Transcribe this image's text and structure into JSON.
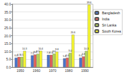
{
  "chart_data": {
    "type": "bar",
    "categories": [
      "1950",
      "1960",
      "1970",
      "1980",
      "1990"
    ],
    "series": [
      {
        "name": "Bangladesh",
        "color": "#4a74c9",
        "values": [
          6.0,
          7.5,
          7.8,
          5.6,
          6.0
        ],
        "value_labels": [
          "6.0",
          "7.5",
          "7.8",
          "5.6",
          "6.0"
        ]
      },
      {
        "name": "India",
        "color": "#e0605a",
        "values": [
          6.5,
          8.0,
          7.8,
          6.0,
          6.8
        ],
        "value_labels": [
          "6.5",
          "8.0",
          "7.8",
          "6.0",
          "6.8"
        ]
      },
      {
        "name": "Sri Lanka",
        "color": "#b5d65a",
        "values": [
          6.5,
          8.5,
          8.6,
          9.0,
          10.3
        ],
        "value_labels": [
          "6.5",
          "8.5",
          "8.6",
          "9.0",
          "10.3"
        ]
      },
      {
        "name": "South Korea",
        "color": "#f5f530",
        "values": [
          10.3,
          10.4,
          9.8,
          20.6,
          39.6
        ],
        "value_labels": [
          "10.3",
          "10.4",
          "9.8",
          "20.6",
          "39.6"
        ]
      }
    ],
    "ylim": [
      0,
      40
    ],
    "yticks": [
      {
        "value": 0,
        "label": "0.0"
      },
      {
        "value": 5,
        "label": "5.0"
      },
      {
        "value": 10,
        "label": "10.0"
      },
      {
        "value": 15,
        "label": "15.0"
      },
      {
        "value": 20,
        "label": "20.0"
      },
      {
        "value": 25,
        "label": "25.0"
      },
      {
        "value": 30,
        "label": "30.0"
      },
      {
        "value": 35,
        "label": "35.0"
      },
      {
        "value": 40,
        "label": "40.0"
      }
    ],
    "grid": true,
    "legend": "right",
    "data_labels": true
  }
}
